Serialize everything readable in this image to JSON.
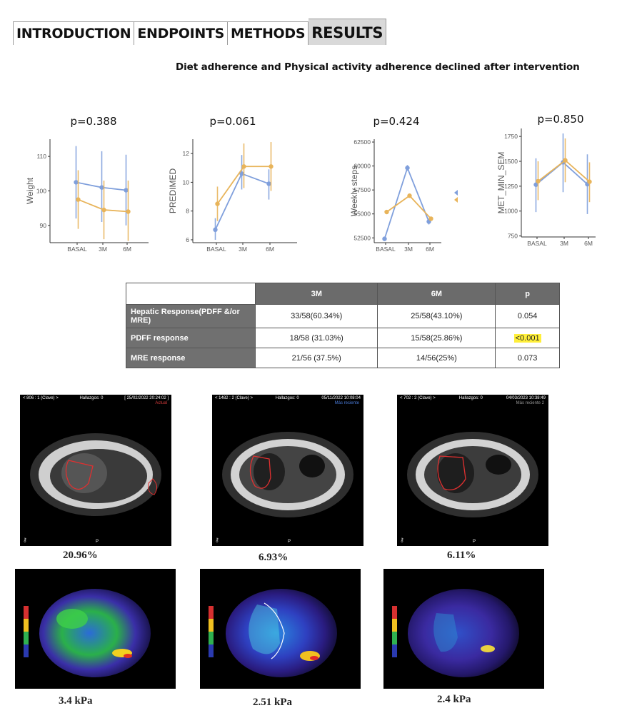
{
  "tabs": [
    {
      "label": "INTRODUCTION",
      "active": false
    },
    {
      "label": "ENDPOINTS",
      "active": false
    },
    {
      "label": "METHODS",
      "active": false
    },
    {
      "label": "RESULTS",
      "active": true
    }
  ],
  "subtitle": "Diet adherence and Physical activity adherence declined after intervention",
  "colors": {
    "blue": "#7f9fdc",
    "orange": "#e8b45a"
  },
  "chart_data": [
    {
      "type": "line",
      "title": "p=0.388",
      "ylabel": "Weight",
      "categories": [
        "BASAL",
        "3M",
        "6M"
      ],
      "ylim": [
        85,
        115
      ],
      "yticks": [
        90,
        100,
        110
      ],
      "series": [
        {
          "color": "blue",
          "values": [
            102.5,
            101,
            100.2
          ],
          "err": [
            [
              92,
              113
            ],
            [
              91,
              111.5
            ],
            [
              90,
              110.5
            ]
          ]
        },
        {
          "color": "orange",
          "values": [
            97.5,
            94.5,
            94
          ],
          "err": [
            [
              89,
              106
            ],
            [
              86,
              103
            ],
            [
              85.5,
              103
            ]
          ]
        }
      ]
    },
    {
      "type": "line",
      "title": "p=0.061",
      "ylabel": "PREDIMED",
      "categories": [
        "BASAL",
        "3M",
        "6M"
      ],
      "ylim": [
        5.8,
        13
      ],
      "yticks": [
        6,
        8,
        10,
        12
      ],
      "series": [
        {
          "color": "blue",
          "values": [
            6.7,
            10.6,
            9.9
          ],
          "err": [
            [
              6.0,
              7.5
            ],
            [
              9.5,
              11.9
            ],
            [
              8.8,
              10.9
            ]
          ]
        },
        {
          "color": "orange",
          "values": [
            8.5,
            11.1,
            11.1
          ],
          "err": [
            [
              7.3,
              9.7
            ],
            [
              9.6,
              12.7
            ],
            [
              9.4,
              12.8
            ]
          ]
        }
      ]
    },
    {
      "type": "line",
      "title": "p=0.424",
      "ylabel": "Weekly steps",
      "categories": [
        "BASAL",
        "3M",
        "6M"
      ],
      "ylim": [
        52000,
        62800
      ],
      "yticks": [
        52500,
        55000,
        57500,
        60000,
        62500
      ],
      "series": [
        {
          "color": "blue",
          "values": [
            52400,
            59800,
            54200
          ],
          "err": [
            [
              52300,
              52500
            ],
            [
              59500,
              60100
            ],
            [
              53900,
              54500
            ]
          ]
        },
        {
          "color": "orange",
          "values": [
            55200,
            56900,
            54500
          ],
          "err": [
            [
              55100,
              55300
            ],
            [
              56700,
              57100
            ],
            [
              54300,
              54700
            ]
          ]
        }
      ]
    },
    {
      "type": "line",
      "title": "p=0.850",
      "ylabel": "MET_MIN_SEM",
      "categories": [
        "BASAL",
        "3M",
        "6M"
      ],
      "ylim": [
        740,
        1830
      ],
      "yticks": [
        750,
        1000,
        1250,
        1500,
        1750
      ],
      "series": [
        {
          "color": "blue",
          "values": [
            1265,
            1490,
            1270
          ],
          "err": [
            [
              990,
              1530
            ],
            [
              1190,
              1780
            ],
            [
              970,
              1570
            ]
          ]
        },
        {
          "color": "orange",
          "values": [
            1300,
            1510,
            1295
          ],
          "err": [
            [
              1110,
              1500
            ],
            [
              1290,
              1730
            ],
            [
              1090,
              1490
            ]
          ]
        }
      ]
    }
  ],
  "table": {
    "headers": [
      "",
      "3M",
      "6M",
      "p"
    ],
    "rows": [
      {
        "label": "Hepatic Response(PDFF &/or MRE)",
        "m3": "33/58(60.34%)",
        "m6": "25/58(43.10%)",
        "p": "0.054",
        "highlight": false
      },
      {
        "label": "PDFF response",
        "m3": "18/58 (31.03%)",
        "m6": "15/58(25.86%)",
        "p": "<0.001",
        "highlight": true
      },
      {
        "label": "MRE response",
        "m3": "21/56 (37.5%)",
        "m6": "14/56(25%)",
        "p": "0.073",
        "highlight": false
      }
    ]
  },
  "mri": [
    {
      "hdr_left": "< 806 : 1 (Clave) >",
      "hdr_mid": "Hallazgos: 0",
      "hdr_right": "[ 25/02/2022 20:24:02 ]",
      "status": "Actual",
      "status_color": "#d23a3a",
      "caption": "20.96%"
    },
    {
      "hdr_left": "< 1482 : 2 (Clave) >",
      "hdr_mid": "Hallazgos: 0",
      "hdr_right": "05/11/2022 10:08:04",
      "status": "Más reciente",
      "status_color": "#4a7bd8",
      "caption": "6.93%"
    },
    {
      "hdr_left": "< 702 : 2 (Clave) >",
      "hdr_mid": "Hallazgos: 0",
      "hdr_right": "04/03/2023 10:38:49",
      "status": "Más reciente 2",
      "status_color": "#999999",
      "caption": "6.11%"
    }
  ],
  "mri_bottom_label": "P",
  "elastography": [
    {
      "caption": "3.4 kPa"
    },
    {
      "caption": "2.51 kPa"
    },
    {
      "caption": "2.4 kPa"
    }
  ]
}
